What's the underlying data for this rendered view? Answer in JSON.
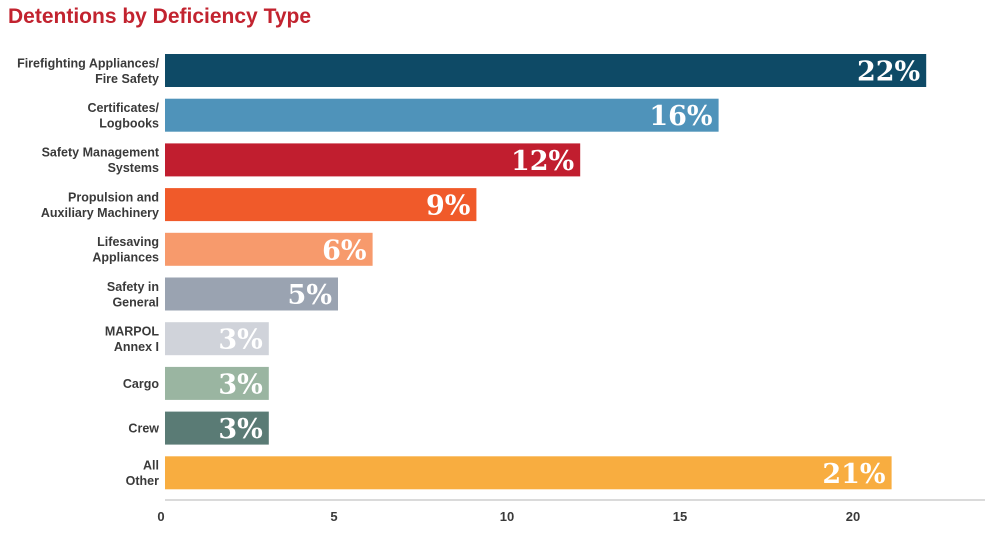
{
  "chart_data": {
    "type": "bar",
    "orientation": "horizontal",
    "title": "Detentions by Deficiency Type",
    "xlabel": "",
    "ylabel": "",
    "xlim": [
      0,
      23
    ],
    "x_ticks": [
      "0",
      "5",
      "10",
      "15",
      "20"
    ],
    "grid": false,
    "legend": "none",
    "categories": [
      [
        "Firefighting Appliances/",
        "Fire Safety"
      ],
      [
        "Certificates/",
        "Logbooks"
      ],
      [
        "Safety Management",
        "Systems"
      ],
      [
        "Propulsion and",
        "Auxiliary Machinery"
      ],
      [
        "Lifesaving",
        "Appliances"
      ],
      [
        "Safety in",
        "General"
      ],
      [
        "MARPOL",
        "Annex I"
      ],
      [
        "Cargo"
      ],
      [
        "Crew"
      ],
      [
        "All",
        "Other"
      ]
    ],
    "values": [
      22,
      16,
      12,
      9,
      6,
      5,
      3,
      3,
      3,
      21
    ],
    "value_labels": [
      "22%",
      "16%",
      "12%",
      "9%",
      "6%",
      "5%",
      "3%",
      "3%",
      "3%",
      "21%"
    ],
    "colors": [
      "#0e4a66",
      "#4f93ba",
      "#c11e2f",
      "#f05a2a",
      "#f79a6c",
      "#9aa3b1",
      "#d0d3da",
      "#9ab5a1",
      "#5a7b75",
      "#f8ad40"
    ]
  }
}
